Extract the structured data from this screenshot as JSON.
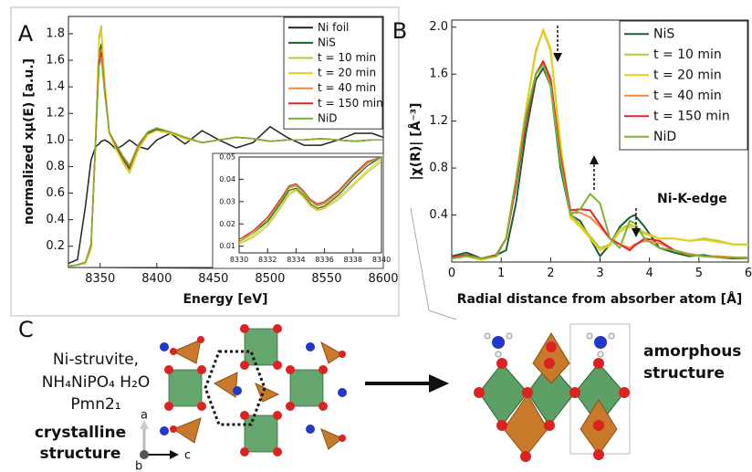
{
  "chart_data": [
    {
      "type": "line",
      "panel": "A",
      "xlabel": "Energy [eV]",
      "ylabel": "normalized xμ(E) [a.u.]",
      "legend": "upper right",
      "xlim": [
        8322,
        8600
      ],
      "ylim": [
        0.04,
        1.93
      ],
      "xticks": [
        8350,
        8400,
        8450,
        8500,
        8550,
        8600
      ],
      "yticks": [
        0.2,
        0.4,
        0.6,
        0.8,
        {
          "value": 1,
          "label": "1.0"
        },
        1.2,
        1.4,
        1.6,
        1.8
      ],
      "x": [
        8322,
        8330,
        8337,
        8342,
        8346,
        8349,
        8351,
        8354,
        8358,
        8364,
        8370,
        8376,
        8384,
        8392,
        8400,
        8412,
        8425,
        8440,
        8455,
        8470,
        8485,
        8500,
        8515,
        8530,
        8545,
        8560,
        8575,
        8590,
        8600
      ],
      "series": [
        {
          "name": "Ni foil",
          "color": "#222222",
          "values": [
            0.07,
            0.1,
            0.5,
            0.85,
            0.95,
            0.97,
            0.99,
            1.0,
            0.98,
            0.93,
            0.96,
            1.0,
            0.95,
            0.93,
            1.0,
            1.05,
            0.97,
            1.07,
            1.0,
            0.94,
            0.98,
            1.1,
            1.02,
            0.96,
            0.96,
            1.0,
            1.05,
            1.05,
            1.02
          ]
        },
        {
          "name": "NiS",
          "color": "#1f5c32",
          "values": [
            0.05,
            0.06,
            0.08,
            0.2,
            1.0,
            1.65,
            1.72,
            1.4,
            1.05,
            0.95,
            0.85,
            0.78,
            0.95,
            1.05,
            1.08,
            1.06,
            1.02,
            0.98,
            1.0,
            1.02,
            1.01,
            0.99,
            1.0,
            1.0,
            1.01,
            1.0,
            0.99,
            1.0,
            1.0
          ]
        },
        {
          "name": "t = 10 min",
          "color": "#b8c93a",
          "values": [
            0.05,
            0.06,
            0.07,
            0.18,
            1.05,
            1.78,
            1.86,
            1.45,
            1.05,
            0.93,
            0.83,
            0.75,
            0.93,
            1.04,
            1.07,
            1.05,
            1.01,
            0.98,
            1.0,
            1.02,
            1.01,
            0.99,
            1.0,
            1.0,
            1.01,
            1.0,
            0.99,
            1.0,
            1.0
          ]
        },
        {
          "name": "t = 20 min",
          "color": "#e6cf1a",
          "values": [
            0.05,
            0.06,
            0.07,
            0.18,
            1.03,
            1.75,
            1.82,
            1.43,
            1.05,
            0.93,
            0.84,
            0.76,
            0.94,
            1.04,
            1.07,
            1.05,
            1.01,
            0.98,
            1.0,
            1.02,
            1.01,
            0.99,
            1.0,
            1.0,
            1.01,
            1.0,
            0.99,
            1.0,
            1.0
          ]
        },
        {
          "name": "t = 40 min",
          "color": "#f08a3c",
          "values": [
            0.05,
            0.06,
            0.08,
            0.21,
            1.0,
            1.6,
            1.68,
            1.38,
            1.06,
            0.96,
            0.87,
            0.8,
            0.96,
            1.06,
            1.09,
            1.06,
            1.02,
            0.98,
            1.0,
            1.02,
            1.01,
            0.99,
            1.0,
            1.0,
            1.01,
            1.0,
            0.99,
            1.0,
            1.0
          ]
        },
        {
          "name": "t = 150 min",
          "color": "#e3232f",
          "values": [
            0.05,
            0.06,
            0.08,
            0.21,
            0.99,
            1.59,
            1.66,
            1.37,
            1.06,
            0.96,
            0.87,
            0.8,
            0.96,
            1.06,
            1.09,
            1.06,
            1.02,
            0.98,
            1.0,
            1.02,
            1.01,
            0.99,
            1.0,
            1.0,
            1.01,
            1.0,
            0.99,
            1.0,
            1.0
          ]
        },
        {
          "name": "NiD",
          "color": "#7db234",
          "values": [
            0.05,
            0.06,
            0.08,
            0.22,
            0.98,
            1.55,
            1.62,
            1.35,
            1.06,
            0.97,
            0.88,
            0.81,
            0.97,
            1.06,
            1.09,
            1.06,
            1.02,
            0.98,
            1.0,
            1.02,
            1.01,
            0.99,
            1.0,
            1.0,
            1.01,
            1.0,
            0.99,
            1.0,
            1.0
          ]
        }
      ]
    },
    {
      "type": "line",
      "xlim": [
        8330,
        8340
      ],
      "ylim": [
        0.007,
        0.05
      ],
      "xticks": [
        8330,
        8332,
        8334,
        8336,
        8338,
        8340
      ],
      "yticks": [
        0.01,
        0.02,
        0.03,
        0.04,
        0.05
      ],
      "x": [
        8330,
        8331,
        8332,
        8333,
        8333.5,
        8334,
        8334.5,
        8335,
        8335.5,
        8336,
        8337,
        8338,
        8339,
        8340
      ],
      "series": [
        {
          "color": "#1f5c32",
          "values": [
            0.012,
            0.016,
            0.021,
            0.03,
            0.035,
            0.036,
            0.033,
            0.029,
            0.027,
            0.028,
            0.033,
            0.04,
            0.046,
            0.05
          ]
        },
        {
          "color": "#b8c93a",
          "values": [
            0.011,
            0.014,
            0.019,
            0.028,
            0.033,
            0.035,
            0.032,
            0.028,
            0.026,
            0.027,
            0.031,
            0.037,
            0.043,
            0.048
          ]
        },
        {
          "color": "#e6cf1a",
          "values": [
            0.011,
            0.015,
            0.02,
            0.029,
            0.034,
            0.0355,
            0.0325,
            0.0285,
            0.0265,
            0.0275,
            0.032,
            0.038,
            0.044,
            0.049
          ]
        },
        {
          "color": "#f08a3c",
          "values": [
            0.012,
            0.017,
            0.022,
            0.031,
            0.036,
            0.037,
            0.034,
            0.03,
            0.028,
            0.029,
            0.034,
            0.041,
            0.047,
            0.05
          ]
        },
        {
          "color": "#e3232f",
          "values": [
            0.013,
            0.017,
            0.023,
            0.032,
            0.037,
            0.038,
            0.035,
            0.031,
            0.029,
            0.03,
            0.035,
            0.042,
            0.048,
            0.05
          ]
        },
        {
          "color": "#7db234",
          "values": [
            0.012,
            0.016,
            0.022,
            0.031,
            0.0365,
            0.0375,
            0.0345,
            0.0305,
            0.0285,
            0.0295,
            0.0345,
            0.0415,
            0.0475,
            0.05
          ]
        }
      ]
    },
    {
      "type": "line",
      "panel": "B",
      "xlabel": "Radial distance from absorber atom [Å]",
      "ylabel": "|χ(R)| [Å⁻³]",
      "legend": "upper right",
      "annotation": "Ni-K-edge",
      "xlim": [
        0,
        6
      ],
      "ylim": [
        0,
        2.06
      ],
      "xticks": [
        0,
        1,
        2,
        3,
        4,
        5,
        6
      ],
      "yticks": [
        0.4,
        0.8,
        1.2,
        1.6,
        {
          "value": 2,
          "label": "2.0"
        }
      ],
      "x": [
        0,
        0.3,
        0.6,
        0.9,
        1.1,
        1.3,
        1.5,
        1.7,
        1.85,
        2.0,
        2.2,
        2.4,
        2.6,
        2.8,
        3.0,
        3.2,
        3.4,
        3.6,
        3.7,
        3.9,
        4.2,
        4.5,
        4.8,
        5.1,
        5.4,
        5.7,
        6.0
      ],
      "series": [
        {
          "name": "NiS",
          "color": "#1f5c32",
          "values": [
            0.05,
            0.08,
            0.03,
            0.06,
            0.1,
            0.5,
            1.1,
            1.55,
            1.65,
            1.5,
            0.8,
            0.4,
            0.35,
            0.2,
            0.05,
            0.15,
            0.3,
            0.38,
            0.4,
            0.3,
            0.12,
            0.08,
            0.05,
            0.06,
            0.04,
            0.03,
            0.04
          ]
        },
        {
          "name": "t = 10 min",
          "color": "#b8c93a",
          "values": [
            0.03,
            0.05,
            0.02,
            0.05,
            0.2,
            0.7,
            1.3,
            1.8,
            1.97,
            1.8,
            1.0,
            0.4,
            0.32,
            0.22,
            0.12,
            0.15,
            0.28,
            0.32,
            0.3,
            0.25,
            0.2,
            0.2,
            0.18,
            0.2,
            0.18,
            0.15,
            0.15
          ]
        },
        {
          "name": "t = 20 min",
          "color": "#e6cf1a",
          "values": [
            0.03,
            0.05,
            0.02,
            0.05,
            0.2,
            0.7,
            1.3,
            1.78,
            1.98,
            1.82,
            1.0,
            0.38,
            0.3,
            0.2,
            0.1,
            0.14,
            0.26,
            0.3,
            0.28,
            0.24,
            0.2,
            0.2,
            0.18,
            0.19,
            0.17,
            0.15,
            0.15
          ]
        },
        {
          "name": "t = 40 min",
          "color": "#f08a3c",
          "values": [
            0.04,
            0.06,
            0.03,
            0.06,
            0.2,
            0.65,
            1.2,
            1.6,
            1.7,
            1.55,
            0.9,
            0.42,
            0.42,
            0.38,
            0.3,
            0.2,
            0.15,
            0.12,
            0.15,
            0.18,
            0.16,
            0.1,
            0.07,
            0.05,
            0.05,
            0.04,
            0.04
          ]
        },
        {
          "name": "t = 150 min",
          "color": "#e3232f",
          "values": [
            0.04,
            0.06,
            0.03,
            0.06,
            0.2,
            0.65,
            1.2,
            1.6,
            1.71,
            1.56,
            0.9,
            0.44,
            0.45,
            0.44,
            0.32,
            0.2,
            0.15,
            0.1,
            0.14,
            0.2,
            0.18,
            0.1,
            0.06,
            0.05,
            0.04,
            0.03,
            0.03
          ]
        },
        {
          "name": "NiD",
          "color": "#7db234",
          "values": [
            0.03,
            0.05,
            0.03,
            0.05,
            0.2,
            0.7,
            1.25,
            1.6,
            1.68,
            1.5,
            0.85,
            0.4,
            0.45,
            0.58,
            0.5,
            0.2,
            0.12,
            0.35,
            0.33,
            0.2,
            0.12,
            0.1,
            0.06,
            0.05,
            0.04,
            0.04,
            0.03
          ]
        }
      ]
    }
  ],
  "diagram": {
    "panel": "C",
    "name": "Ni-struvite,",
    "formula": "NH₄NiPO₄ H₂O",
    "space_group": "Pmn2₁",
    "crystalline": [
      "crystalline",
      "structure"
    ],
    "amorphous": [
      "amorphous",
      "structure"
    ],
    "axes": {
      "a": "a",
      "b": "b",
      "c": "c"
    }
  }
}
